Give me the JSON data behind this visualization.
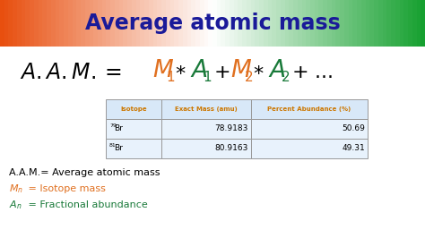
{
  "title": "Average atomic mass",
  "title_color": "#1a1a99",
  "title_fontsize": 17,
  "bg_color": "#ffffff",
  "orange_color": "#e07020",
  "green_color": "#1a7a3a",
  "table_header_color": "#cc7700",
  "table_isotope_col": "Isotope",
  "table_mass_col": "Exact Mass (amu)",
  "table_abundance_col": "Percent Abundance (%)",
  "table_data": [
    [
      "79Br",
      "78.9183",
      "50.69"
    ],
    [
      "81Br",
      "80.9163",
      "49.31"
    ]
  ],
  "legend_line1": "A.A.M.= Average atomic mass",
  "legend_line2_rest": " = Isotope mass",
  "legend_line3_rest": " = Fractional abundance",
  "table_header_bg": "#d8e8f8",
  "table_row_bg": "#e8f2fc",
  "header_orange": "#e85010",
  "header_green": "#18a030",
  "header_white": "#ffffff"
}
